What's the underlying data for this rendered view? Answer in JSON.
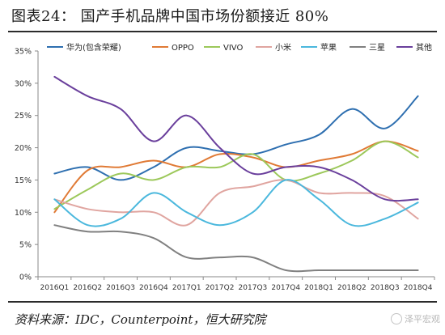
{
  "page": {
    "title": "图表24：  国产手机品牌中国市场份额接近 80%",
    "source": "资料来源：IDC，Counterpoint，恒大研究院",
    "watermark": "泽平宏观"
  },
  "chart_data": {
    "type": "line",
    "title": "",
    "xlabel": "",
    "ylabel": "",
    "categories": [
      "2016Q1",
      "2016Q2",
      "2016Q3",
      "2016Q4",
      "2017Q1",
      "2017Q2",
      "2017Q3",
      "2017Q4",
      "2018Q1",
      "2018Q2",
      "2018Q3",
      "2018Q4"
    ],
    "ylim": [
      0,
      35
    ],
    "yticks": [
      0,
      5,
      10,
      15,
      20,
      25,
      30,
      35
    ],
    "ytick_labels": [
      "0%",
      "5%",
      "10%",
      "15%",
      "20%",
      "25%",
      "30%",
      "35%"
    ],
    "grid": false,
    "legend_position": "top",
    "series": [
      {
        "name": "华为(包含荣耀)",
        "color": "#2e6fb0",
        "values": [
          16,
          17,
          15,
          17,
          20,
          19.5,
          19,
          20.5,
          22,
          26,
          23,
          28
        ]
      },
      {
        "name": "OPPO",
        "color": "#e07a35",
        "values": [
          10,
          16.5,
          17,
          18,
          17,
          19,
          18.5,
          17,
          18,
          19,
          21,
          19.5
        ]
      },
      {
        "name": "VIVO",
        "color": "#9cc85a",
        "values": [
          10.5,
          13.5,
          16,
          15,
          17,
          17,
          19,
          15,
          16,
          18,
          21,
          18.5
        ]
      },
      {
        "name": "小米",
        "color": "#e0a5a0",
        "values": [
          12,
          10.5,
          10,
          10,
          8,
          13,
          14,
          15,
          13,
          13,
          12.5,
          9
        ]
      },
      {
        "name": "苹果",
        "color": "#4bb8dd",
        "values": [
          12,
          8,
          9,
          13,
          10,
          8,
          10,
          15,
          12,
          8,
          9,
          11.5
        ]
      },
      {
        "name": "三星",
        "color": "#808080",
        "values": [
          8,
          7,
          7,
          6,
          3,
          3,
          3,
          1,
          1,
          1,
          1,
          1
        ]
      },
      {
        "name": "其他",
        "color": "#6a3f9c",
        "values": [
          31,
          28,
          26,
          21,
          25,
          20,
          16,
          17,
          17,
          15,
          12,
          12
        ]
      }
    ]
  }
}
